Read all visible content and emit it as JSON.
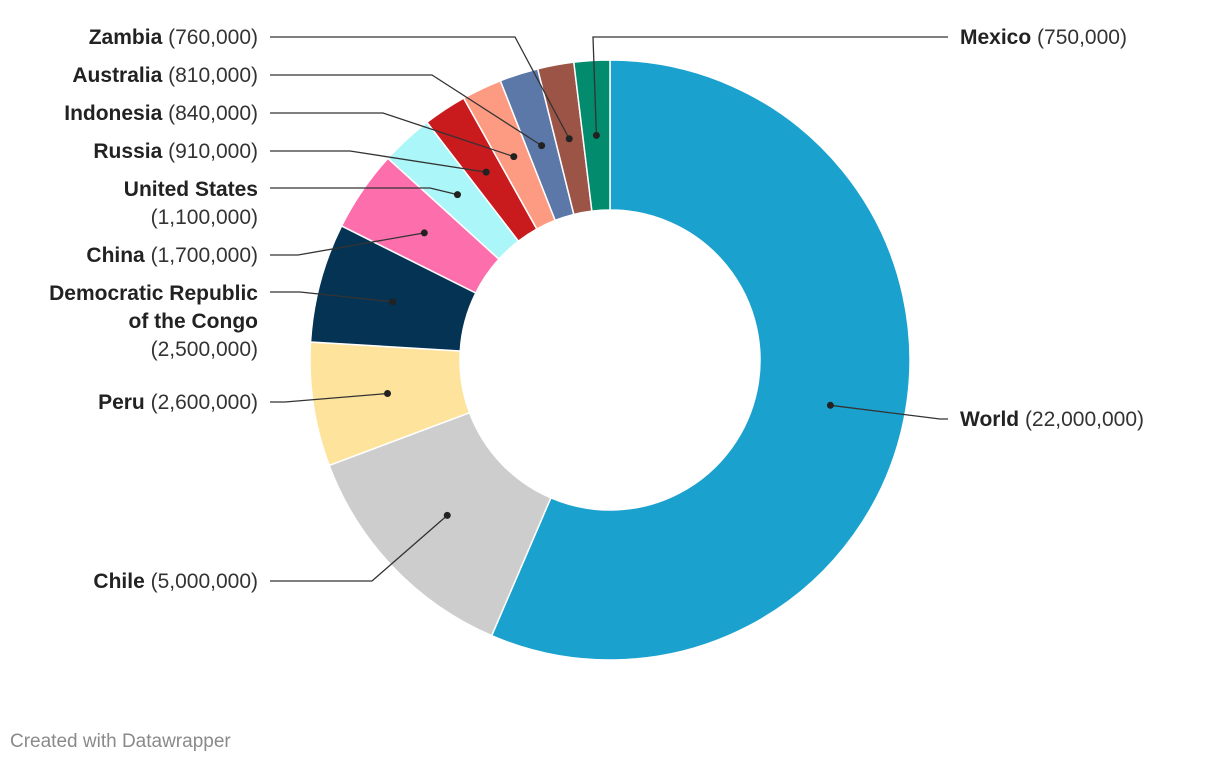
{
  "chart_data": {
    "type": "pie",
    "variant": "donut",
    "title": "",
    "slices": [
      {
        "name": "World",
        "value": 22000000,
        "value_label": "(22,000,000)",
        "color": "#1aa1ce"
      },
      {
        "name": "Chile",
        "value": 5000000,
        "value_label": "(5,000,000)",
        "color": "#cdcdcd"
      },
      {
        "name": "Peru",
        "value": 2600000,
        "value_label": "(2,600,000)",
        "color": "#fde39b"
      },
      {
        "name": "Democratic Republic of the Congo",
        "value": 2500000,
        "value_label": "(2,500,000)",
        "color": "#043353"
      },
      {
        "name": "China",
        "value": 1700000,
        "value_label": "(1,700,000)",
        "color": "#fd6fac"
      },
      {
        "name": "United States",
        "value": 1100000,
        "value_label": "(1,100,000)",
        "color": "#abf6f8"
      },
      {
        "name": "Russia",
        "value": 910000,
        "value_label": "(910,000)",
        "color": "#c91b1e"
      },
      {
        "name": "Indonesia",
        "value": 840000,
        "value_label": "(840,000)",
        "color": "#fd9b82"
      },
      {
        "name": "Australia",
        "value": 810000,
        "value_label": "(810,000)",
        "color": "#5b78a8"
      },
      {
        "name": "Zambia",
        "value": 760000,
        "value_label": "(760,000)",
        "color": "#9b5446"
      },
      {
        "name": "Mexico",
        "value": 750000,
        "value_label": "(750,000)",
        "color": "#038b6d"
      }
    ]
  },
  "footer": "Created with Datawrapper"
}
